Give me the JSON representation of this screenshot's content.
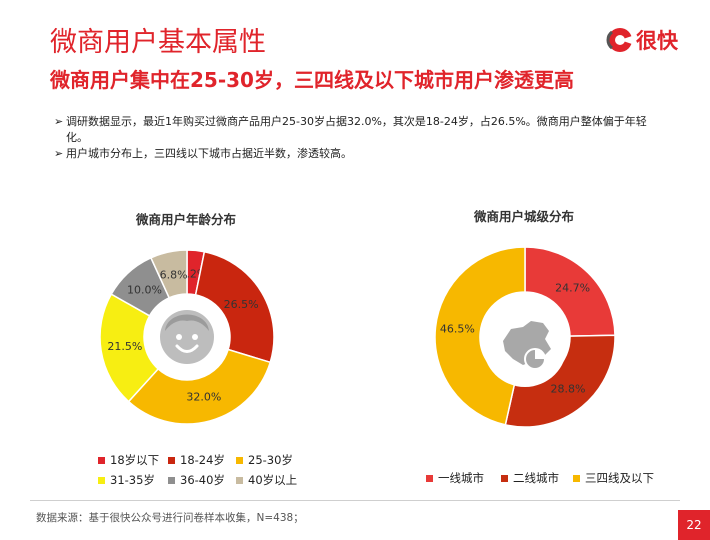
{
  "header": {
    "title": "微商用户基本属性",
    "subtitle": "微商用户集中在25-30岁，三四线及以下城市用户渗透更高",
    "logo_text": "很快"
  },
  "bullets": [
    "调研数据显示，最近1年购买过微商产品用户25-30岁占据32.0%，其次是18-24岁，占26.5%。微商用户整体偏于年轻化。",
    "用户城市分布上，三四线以下城市占据近半数，渗透较高。"
  ],
  "colors": {
    "accent": "#e0242b"
  },
  "chart_data": [
    {
      "type": "pie",
      "title": "微商用户年龄分布",
      "center_icon": "smiley-face-icon",
      "slices": [
        {
          "label": "18岁以下",
          "value": 3.2,
          "display": "3.2%",
          "color": "#e0242b"
        },
        {
          "label": "18-24岁",
          "value": 26.5,
          "display": "26.5%",
          "color": "#c9260f"
        },
        {
          "label": "25-30岁",
          "value": 32.0,
          "display": "32.0%",
          "color": "#f7b800"
        },
        {
          "label": "31-35岁",
          "value": 21.5,
          "display": "21.5%",
          "color": "#f7ee12"
        },
        {
          "label": "36-40岁",
          "value": 10.0,
          "display": "10.0%",
          "color": "#8f8f8f"
        },
        {
          "label": "40岁以上",
          "value": 6.8,
          "display": "6.8%",
          "color": "#c8bba0"
        }
      ],
      "legend_placement": "bottom"
    },
    {
      "type": "pie",
      "title": "微商用户城级分布",
      "center_icon": "china-map-icon",
      "slices": [
        {
          "label": "一线城市",
          "value": 24.7,
          "display": "24.7%",
          "color": "#e83a38"
        },
        {
          "label": "二线城市",
          "value": 28.8,
          "display": "28.8%",
          "color": "#c62e10"
        },
        {
          "label": "三四线及以下",
          "value": 46.5,
          "display": "46.5%",
          "color": "#f7b800"
        }
      ],
      "legend_placement": "bottom"
    }
  ],
  "footer": {
    "source": "数据来源：基于很快公众号进行问卷样本收集，N=438；",
    "page_number": "22"
  }
}
